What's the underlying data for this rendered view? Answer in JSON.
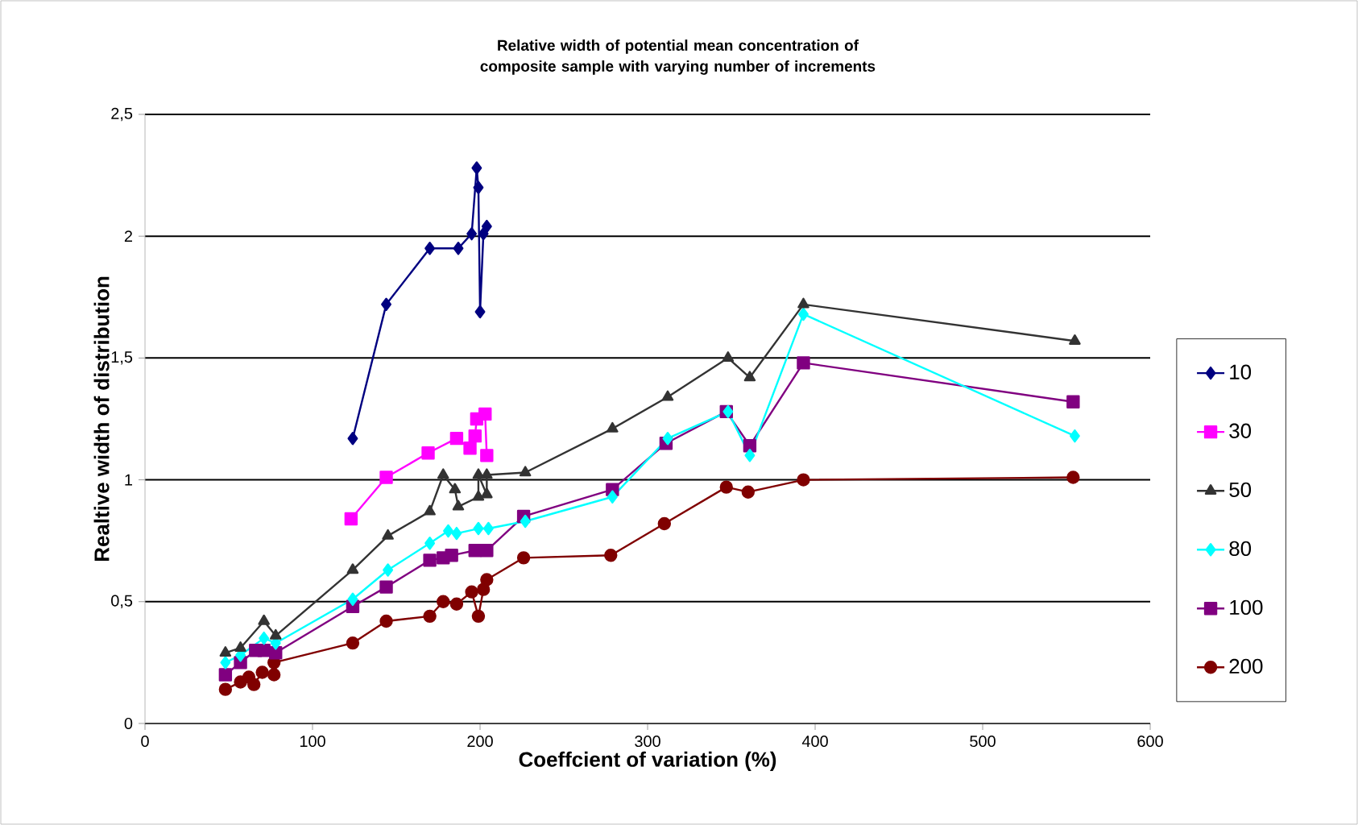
{
  "chart_data": {
    "type": "line",
    "title": "Relative width of potential mean concentration of composite sample with varying number of increments",
    "xlabel": "Coeffcient of variation (%)",
    "ylabel": "Realtive width of distribution",
    "xlim": [
      0,
      600
    ],
    "xticks": [
      0,
      100,
      200,
      300,
      400,
      500,
      600
    ],
    "ylim": [
      0,
      2.5
    ],
    "yticks": [
      0,
      {
        "value": 0.5,
        "label": "0,5"
      },
      1,
      {
        "value": 1.5,
        "label": "1,5"
      },
      2,
      {
        "value": 2.5,
        "label": "2,5"
      }
    ],
    "grid": "y",
    "legend": "right",
    "line_style": "solid",
    "series": [
      {
        "name": "10",
        "color": "#000080",
        "marker": "diamond",
        "x": [
          124,
          144,
          170,
          187,
          195,
          198,
          199,
          200,
          202,
          204
        ],
        "values": [
          1.17,
          1.72,
          1.95,
          1.95,
          2.01,
          2.28,
          2.2,
          1.69,
          2.01,
          2.04
        ]
      },
      {
        "name": "30",
        "color": "#ff00ff",
        "marker": "square",
        "x": [
          123,
          144,
          169,
          186,
          194,
          197,
          198,
          203,
          204
        ],
        "values": [
          0.84,
          1.01,
          1.11,
          1.17,
          1.13,
          1.18,
          1.25,
          1.27,
          1.1
        ]
      },
      {
        "name": "50",
        "color": "#333333",
        "marker": "triangle",
        "x": [
          48,
          57,
          71,
          78,
          124,
          145,
          170,
          178,
          185,
          187,
          199,
          199,
          204,
          204,
          227,
          279,
          312,
          348,
          361,
          393,
          555
        ],
        "values": [
          0.29,
          0.31,
          0.42,
          0.36,
          0.63,
          0.77,
          0.87,
          1.02,
          0.96,
          0.89,
          0.93,
          1.02,
          0.94,
          1.02,
          1.03,
          1.21,
          1.34,
          1.5,
          1.42,
          1.72,
          1.57
        ]
      },
      {
        "name": "80",
        "color": "#00ffff",
        "marker": "diamond",
        "x": [
          48,
          57,
          71,
          78,
          124,
          145,
          170,
          181,
          186,
          199,
          205,
          227,
          279,
          312,
          348,
          361,
          393,
          555
        ],
        "values": [
          0.25,
          0.28,
          0.35,
          0.33,
          0.51,
          0.63,
          0.74,
          0.79,
          0.78,
          0.8,
          0.8,
          0.83,
          0.93,
          1.17,
          1.28,
          1.1,
          1.68,
          1.18
        ]
      },
      {
        "name": "100",
        "color": "#800080",
        "marker": "square",
        "x": [
          48,
          57,
          66,
          71,
          78,
          124,
          144,
          170,
          178,
          183,
          197,
          204,
          226,
          279,
          311,
          347,
          361,
          393,
          554
        ],
        "values": [
          0.2,
          0.25,
          0.3,
          0.3,
          0.29,
          0.48,
          0.56,
          0.67,
          0.68,
          0.69,
          0.71,
          0.71,
          0.85,
          0.96,
          1.15,
          1.28,
          1.14,
          1.48,
          1.32
        ]
      },
      {
        "name": "200",
        "color": "#800000",
        "marker": "circle",
        "x": [
          48,
          57,
          62,
          65,
          70,
          77,
          77,
          124,
          144,
          170,
          178,
          186,
          195,
          199,
          202,
          204,
          226,
          278,
          310,
          347,
          360,
          393,
          554
        ],
        "values": [
          0.14,
          0.17,
          0.19,
          0.16,
          0.21,
          0.2,
          0.25,
          0.33,
          0.42,
          0.44,
          0.5,
          0.49,
          0.54,
          0.44,
          0.55,
          0.59,
          0.68,
          0.69,
          0.82,
          0.97,
          0.95,
          1.0,
          1.01
        ]
      }
    ]
  }
}
